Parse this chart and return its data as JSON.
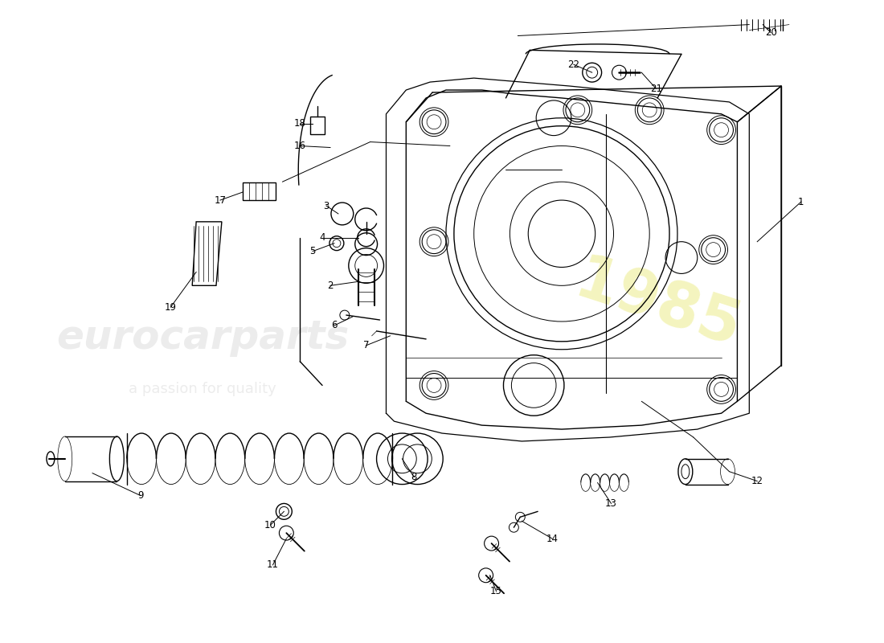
{
  "bg_color": "#ffffff",
  "line_color": "#000000",
  "lw": 1.0,
  "watermark1": "eurocarparts",
  "watermark2": "a passion for quality",
  "watermark_year": "1985",
  "figsize": [
    11.0,
    8.0
  ],
  "dpi": 100
}
